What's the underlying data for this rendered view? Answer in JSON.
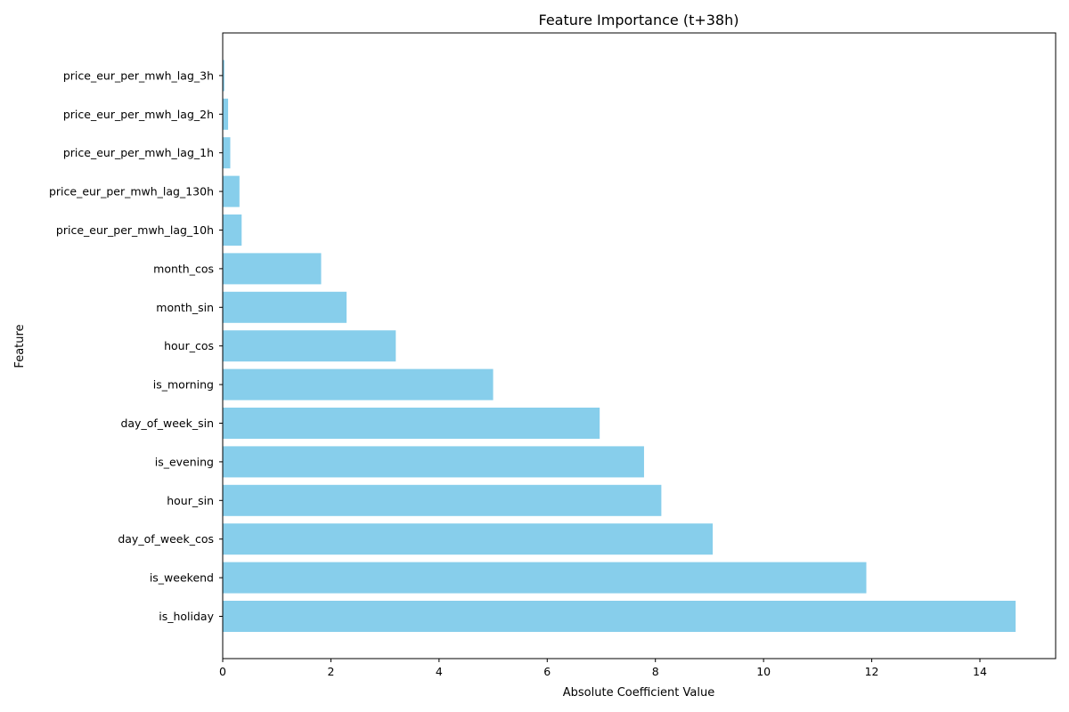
{
  "chart_data": {
    "type": "bar",
    "orientation": "horizontal",
    "title": "Feature Importance (t+38h)",
    "xlabel": "Absolute Coefficient Value",
    "ylabel": "Feature",
    "categories": [
      "is_holiday",
      "is_weekend",
      "day_of_week_cos",
      "hour_sin",
      "is_evening",
      "day_of_week_sin",
      "is_morning",
      "hour_cos",
      "month_sin",
      "month_cos",
      "price_eur_per_mwh_lag_10h",
      "price_eur_per_mwh_lag_130h",
      "price_eur_per_mwh_lag_1h",
      "price_eur_per_mwh_lag_2h",
      "price_eur_per_mwh_lag_3h"
    ],
    "values": [
      14.66,
      11.9,
      9.06,
      8.11,
      7.79,
      6.97,
      5.0,
      3.2,
      2.29,
      1.82,
      0.35,
      0.31,
      0.14,
      0.1,
      0.03
    ],
    "xlim": [
      0,
      15.4
    ],
    "xticks": [
      0,
      2,
      4,
      6,
      8,
      10,
      12,
      14
    ],
    "bar_color": "#87ceeb",
    "grid": false,
    "legend": "none"
  }
}
